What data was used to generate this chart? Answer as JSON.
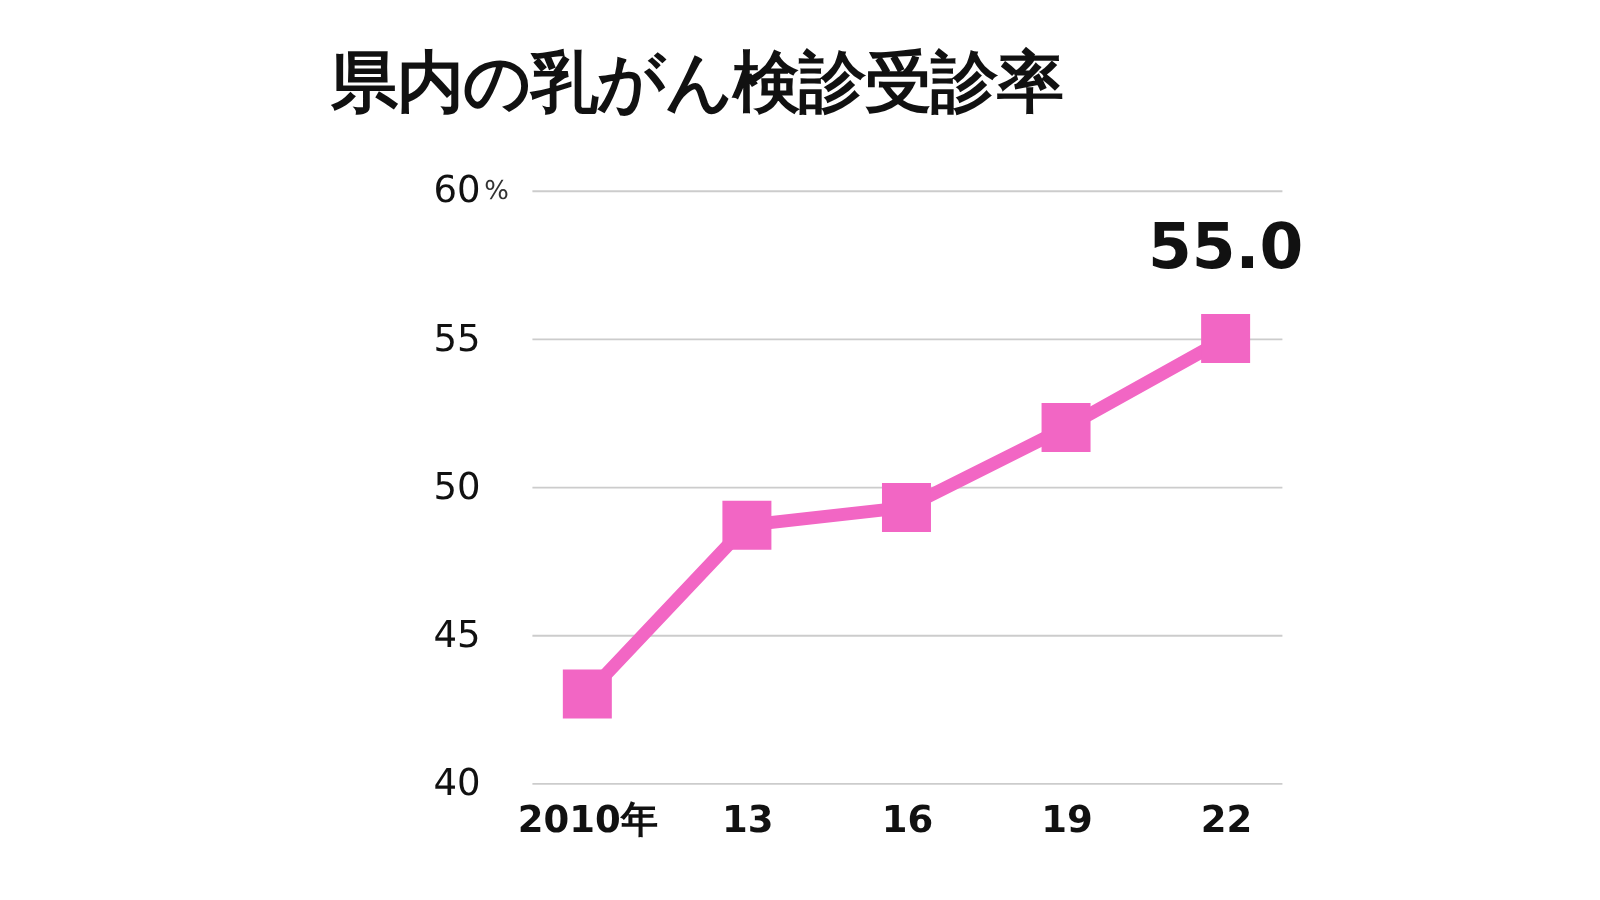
{
  "chart_data": {
    "type": "line",
    "title": "県内の乳がん検診受診率",
    "categories": [
      "2010年",
      "13",
      "16",
      "19",
      "22"
    ],
    "series": [
      {
        "color": "#f266c4",
        "values": [
          43.0,
          48.7,
          49.3,
          52.0,
          55.0
        ]
      }
    ],
    "ylabel": "%",
    "ylim": [
      40,
      60
    ],
    "yticks": [
      40,
      45,
      50,
      55,
      60
    ],
    "grid": "y",
    "marker": "square",
    "line_style": "solid",
    "annotations": [
      {
        "text": "55.0",
        "x": "22",
        "y": 55
      }
    ]
  }
}
